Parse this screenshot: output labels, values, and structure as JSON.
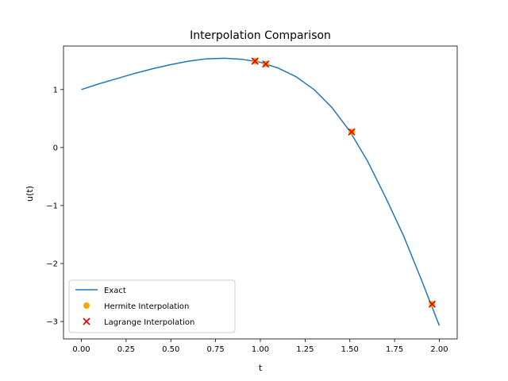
{
  "chart_data": {
    "type": "line",
    "title": "Interpolation Comparison",
    "xlabel": "t",
    "ylabel": "u(t)",
    "xlim": [
      -0.1,
      2.1
    ],
    "ylim": [
      -3.3,
      1.75
    ],
    "xticks": [
      0.0,
      0.25,
      0.5,
      0.75,
      1.0,
      1.25,
      1.5,
      1.75,
      2.0
    ],
    "xtick_labels": [
      "0.00",
      "0.25",
      "0.50",
      "0.75",
      "1.00",
      "1.25",
      "1.50",
      "1.75",
      "2.00"
    ],
    "yticks": [
      -3,
      -2,
      -1,
      0,
      1
    ],
    "ytick_labels": [
      "−3",
      "−2",
      "−1",
      "0",
      "1"
    ],
    "grid": false,
    "legend_position": "lower-left",
    "series": [
      {
        "name": "Exact",
        "kind": "line",
        "color": "#1f77b4",
        "x": [
          0.0,
          0.1,
          0.2,
          0.3,
          0.4,
          0.5,
          0.6,
          0.7,
          0.8,
          0.9,
          1.0,
          1.1,
          1.2,
          1.3,
          1.4,
          1.5,
          1.6,
          1.7,
          1.8,
          1.9,
          2.0
        ],
        "y": [
          1.0,
          1.1,
          1.19,
          1.28,
          1.36,
          1.43,
          1.49,
          1.53,
          1.54,
          1.52,
          1.47,
          1.37,
          1.22,
          1.0,
          0.69,
          0.28,
          -0.24,
          -0.86,
          -1.52,
          -2.28,
          -3.07
        ]
      },
      {
        "name": "Hermite Interpolation",
        "kind": "scatter",
        "marker": "circle",
        "color": "#ffa500",
        "x": [
          0.97,
          1.03,
          1.51,
          1.96
        ],
        "y": [
          1.49,
          1.44,
          0.27,
          -2.7
        ]
      },
      {
        "name": "Lagrange Interpolation",
        "kind": "scatter",
        "marker": "x",
        "color": "#dd0000",
        "x": [
          0.97,
          1.03,
          1.51,
          1.96
        ],
        "y": [
          1.49,
          1.44,
          0.27,
          -2.7
        ]
      }
    ]
  }
}
